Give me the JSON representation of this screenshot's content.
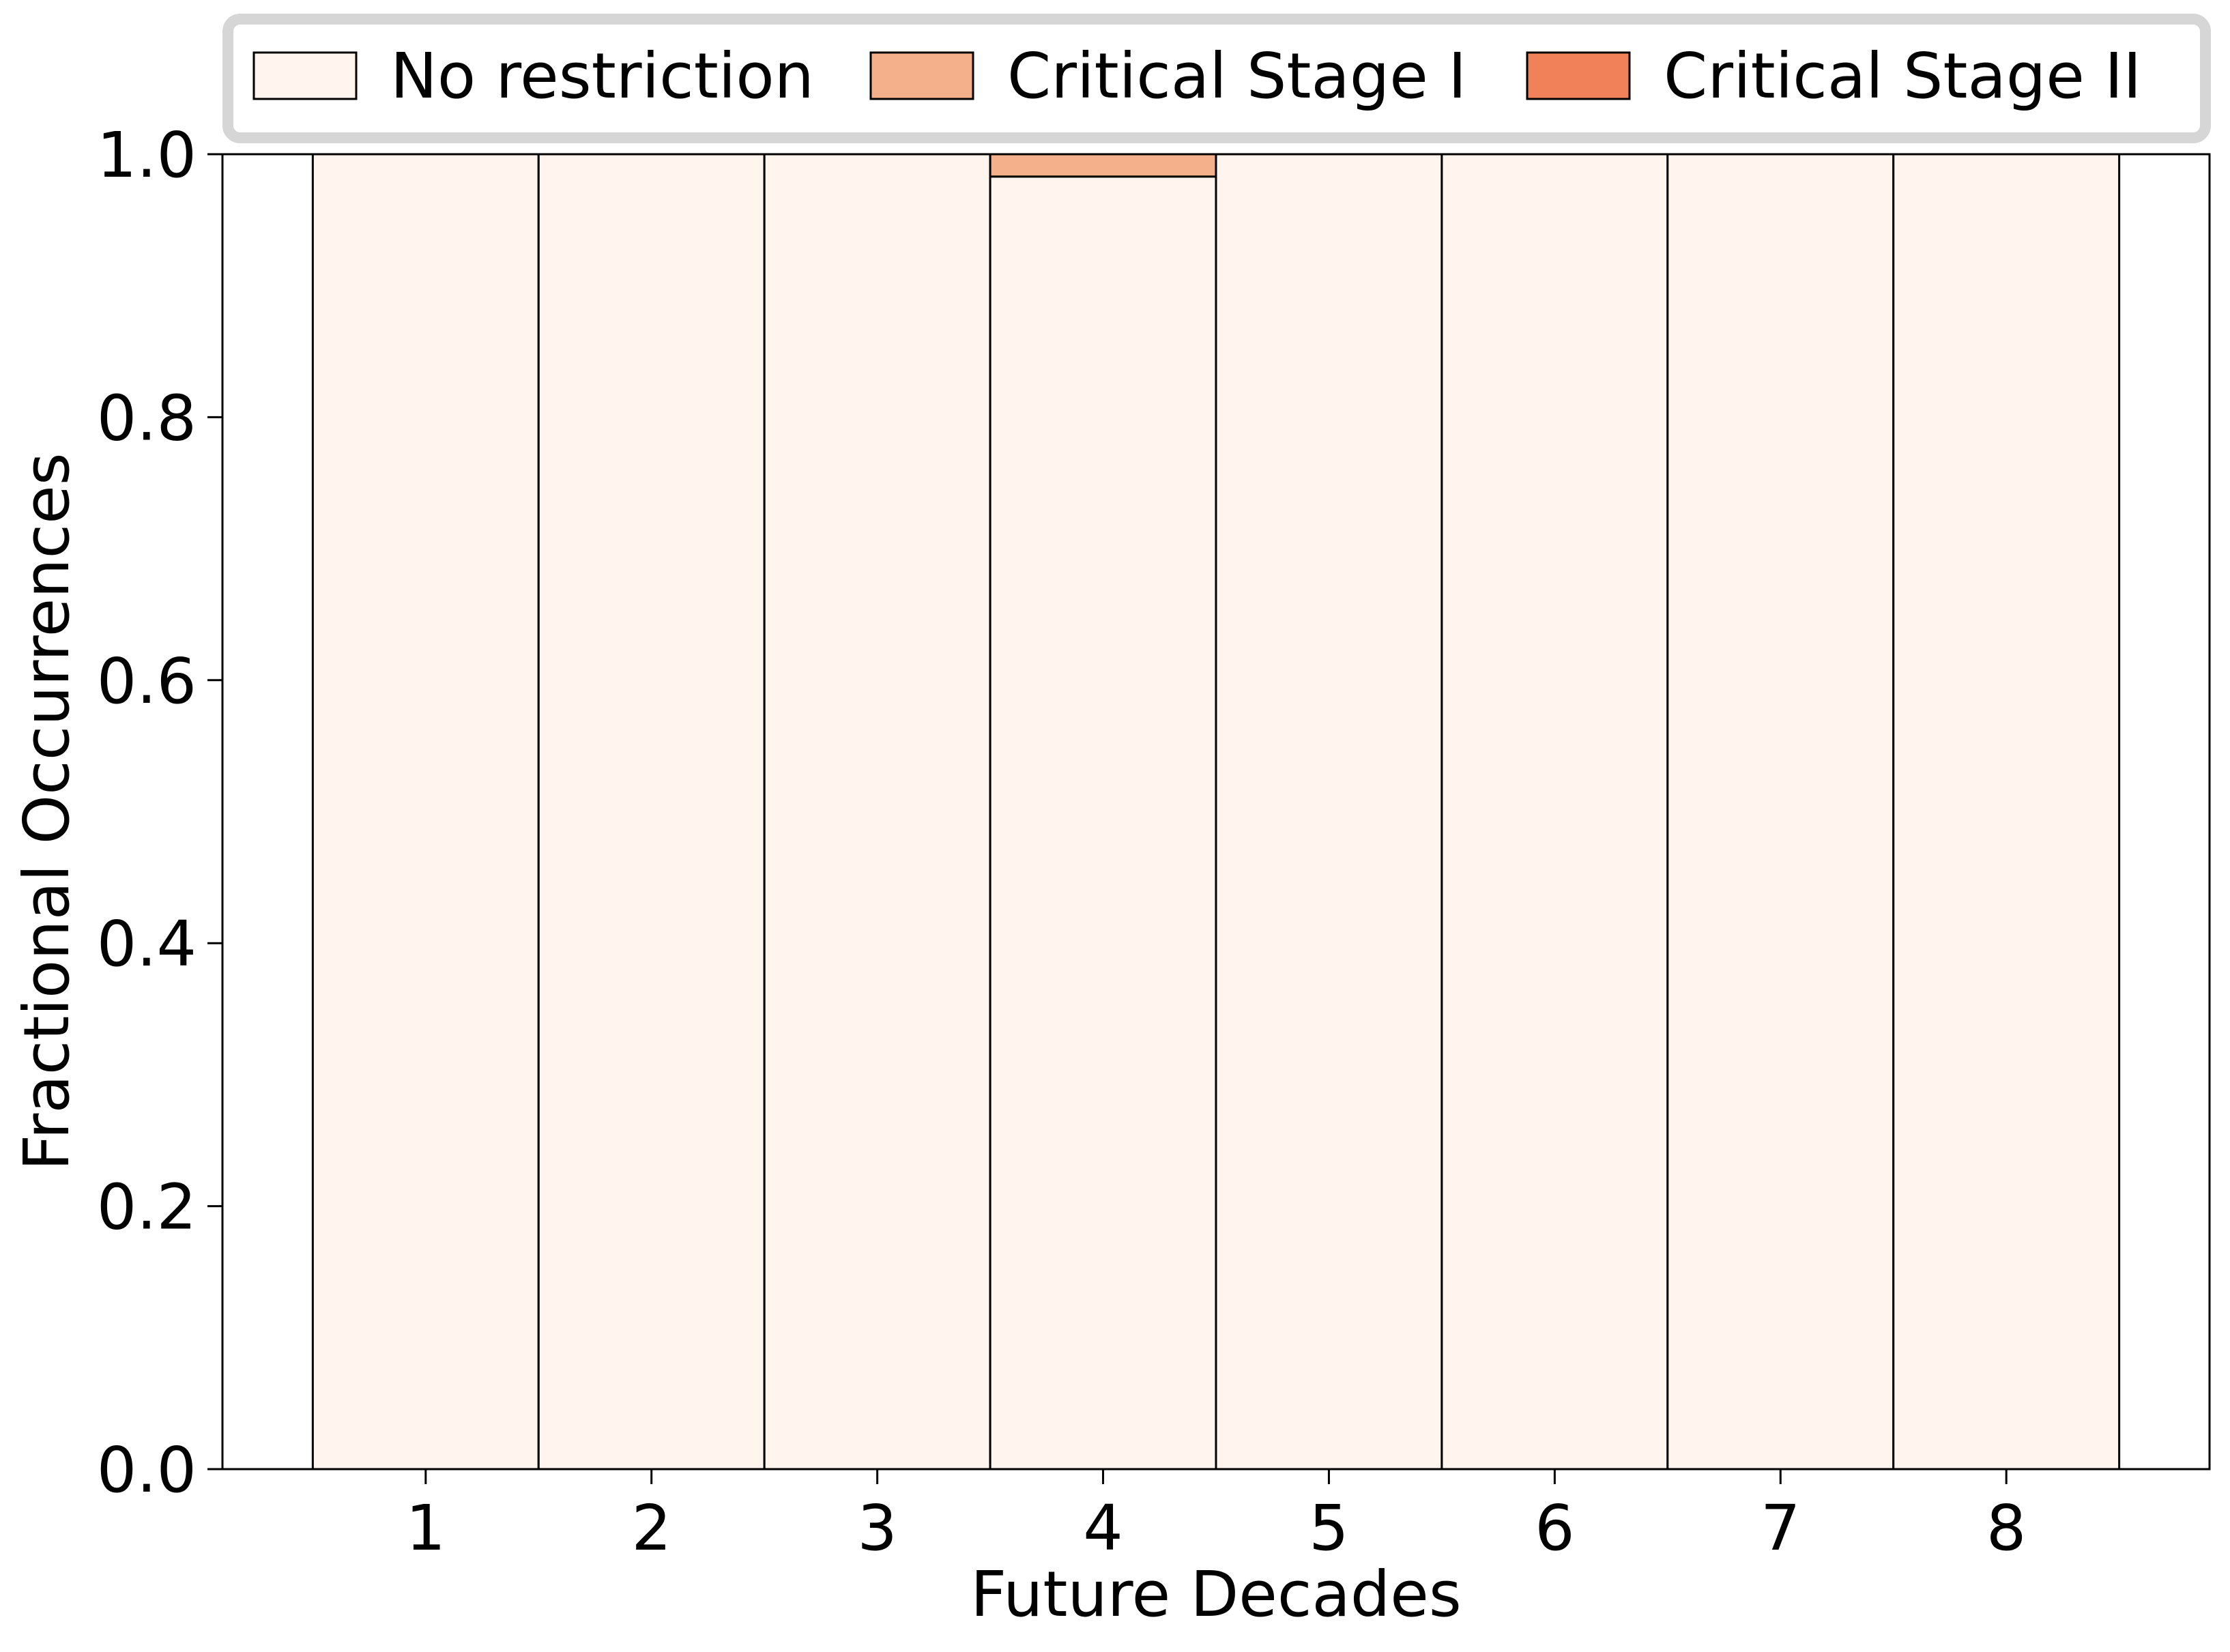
{
  "chart_data": {
    "type": "bar",
    "stacked": true,
    "title": "",
    "xlabel": "Future Decades",
    "ylabel": "Fractional Occurrences",
    "categories": [
      "1",
      "2",
      "3",
      "4",
      "5",
      "6",
      "7",
      "8"
    ],
    "series": [
      {
        "name": "No restriction",
        "color": "#fff5ee",
        "values": [
          1.0,
          1.0,
          1.0,
          0.983,
          1.0,
          1.0,
          1.0,
          1.0
        ]
      },
      {
        "name": "Critical Stage I",
        "color": "#f4b08a",
        "values": [
          0.0,
          0.0,
          0.0,
          0.017,
          0.0,
          0.0,
          0.0,
          0.0
        ]
      },
      {
        "name": "Critical Stage II",
        "color": "#f08159",
        "values": [
          0.0,
          0.0,
          0.0,
          0.0,
          0.0,
          0.0,
          0.0,
          0.0
        ]
      }
    ],
    "ylim": [
      0,
      1.0
    ],
    "yticks": [
      "0.0",
      "0.2",
      "0.4",
      "0.6",
      "0.8",
      "1.0"
    ],
    "grid": false,
    "legend_position": "top"
  }
}
